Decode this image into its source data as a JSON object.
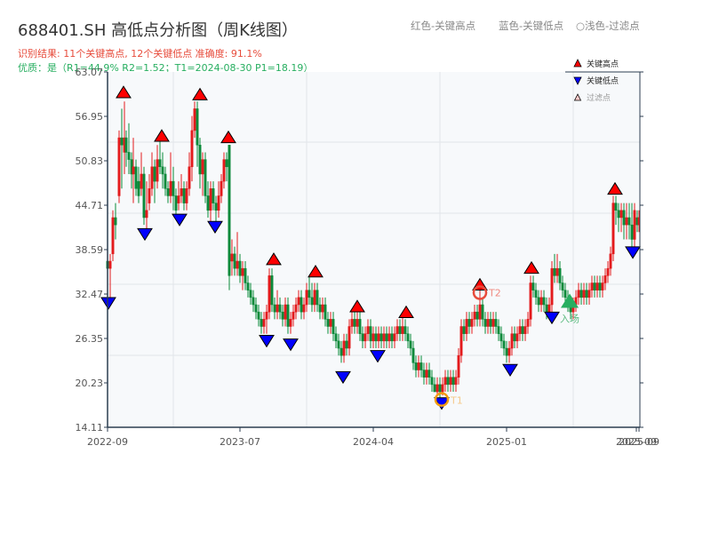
{
  "header": {
    "title": "688401.SH 高低点分析图（周K线图）",
    "result_line": "识别结果: 11个关键高点, 12个关键低点  准确度: 91.1%",
    "quality_line": "优质：是（R1=44.9%  R2=1.52；T1=2024-08-30 P1=18.19）"
  },
  "top_legend": {
    "red_label": "红色-关键高点",
    "blue_label": "蓝色-关键低点",
    "light_label": "○浅色-过滤点"
  },
  "colors": {
    "up": "#e31a1c",
    "down": "#0a8a3a",
    "high_marker": "#ff0000",
    "low_marker": "#0000ff",
    "t1": "#f39c12",
    "t2": "#e74c3c",
    "entry": "#27ae60",
    "plot_bg": "#f7f9fb",
    "grid": "#e2e5ea",
    "axis": "#2c3e50"
  },
  "chart_data": {
    "type": "candlestick",
    "title": "688401.SH 高低点分析图（周K线图）",
    "ylim": [
      14.11,
      63.07
    ],
    "yticks": [
      14.11,
      20.23,
      26.35,
      32.47,
      38.59,
      44.71,
      50.83,
      56.95,
      63.07
    ],
    "xticks": [
      {
        "label": "2022-09",
        "x": 121
      },
      {
        "label": "2023-07",
        "x": 270
      },
      {
        "label": "2024-04",
        "x": 420
      },
      {
        "label": "2025-01",
        "x": 570
      },
      {
        "label": "2025-09",
        "x": 716
      },
      {
        "label": "2025-09",
        "x": 719
      }
    ],
    "legend": [
      {
        "label": "关键高点",
        "marker": "triangle-up",
        "color": "#ff0000"
      },
      {
        "label": "关键低点",
        "marker": "triangle-down",
        "color": "#0000ff"
      },
      {
        "label": "过滤点",
        "marker": "triangle-up-light",
        "color": "#ffcccc"
      }
    ],
    "candles": [
      [
        121,
        37,
        36,
        37.5,
        35.5
      ],
      [
        124,
        36,
        37,
        38,
        32
      ],
      [
        127,
        38,
        43,
        44,
        37
      ],
      [
        130,
        43,
        42,
        45,
        40
      ],
      [
        134,
        46,
        54,
        55,
        45
      ],
      [
        137,
        54,
        53,
        58,
        47
      ],
      [
        140,
        52,
        54,
        59,
        49
      ],
      [
        142,
        54,
        52,
        55,
        50
      ],
      [
        145,
        52,
        51,
        56,
        49
      ],
      [
        148,
        51,
        49,
        52,
        47
      ],
      [
        150,
        49,
        50,
        54,
        45
      ],
      [
        153,
        50,
        47,
        51,
        46
      ],
      [
        156,
        48,
        46,
        50,
        45
      ],
      [
        159,
        47,
        49,
        52,
        46
      ],
      [
        162,
        49,
        43,
        50,
        42
      ],
      [
        165,
        43,
        44,
        48,
        41
      ],
      [
        168,
        45,
        47,
        49,
        44
      ],
      [
        171,
        47,
        50,
        52,
        46
      ],
      [
        174,
        50,
        48,
        51,
        45
      ],
      [
        177,
        48,
        51,
        53,
        47
      ],
      [
        180,
        51,
        50,
        54,
        49
      ],
      [
        183,
        50,
        49,
        52,
        47
      ],
      [
        186,
        49,
        47,
        50,
        46
      ],
      [
        189,
        47,
        46,
        48,
        45
      ],
      [
        192,
        46,
        48,
        52,
        45
      ],
      [
        195,
        48,
        46,
        50,
        44
      ],
      [
        198,
        46,
        44,
        47,
        43
      ],
      [
        201,
        45,
        46,
        48,
        44
      ],
      [
        204,
        46,
        47,
        49,
        45
      ],
      [
        207,
        47,
        45,
        48,
        44
      ],
      [
        210,
        45,
        47,
        48,
        44
      ],
      [
        213,
        47,
        50,
        52,
        46
      ],
      [
        216,
        50,
        55,
        57,
        48
      ],
      [
        219,
        55,
        58,
        59,
        54
      ],
      [
        222,
        58,
        53,
        59,
        50
      ],
      [
        225,
        53,
        49,
        54,
        47
      ],
      [
        228,
        49,
        51,
        52,
        46
      ],
      [
        231,
        51,
        46,
        52,
        45
      ],
      [
        234,
        46,
        44,
        48,
        43
      ],
      [
        237,
        44,
        47,
        48,
        42
      ],
      [
        240,
        47,
        45,
        48,
        44
      ],
      [
        243,
        45,
        44,
        46,
        42
      ],
      [
        246,
        44,
        46,
        48,
        43
      ],
      [
        249,
        46,
        48,
        49,
        45
      ],
      [
        252,
        48,
        51,
        52,
        47
      ],
      [
        255,
        51,
        50,
        52,
        48
      ],
      [
        258,
        53,
        35,
        53,
        33
      ],
      [
        261,
        37,
        38,
        40,
        35
      ],
      [
        264,
        38,
        36,
        39,
        35
      ],
      [
        267,
        36,
        37,
        41,
        35
      ],
      [
        270,
        37,
        35,
        38,
        34
      ],
      [
        273,
        35,
        36,
        37,
        33
      ],
      [
        276,
        36,
        34,
        37,
        33
      ],
      [
        279,
        34,
        33,
        35,
        32
      ],
      [
        282,
        33,
        32,
        34,
        31
      ],
      [
        285,
        32,
        31,
        33,
        30
      ],
      [
        288,
        31,
        30,
        32,
        29
      ],
      [
        291,
        30,
        29,
        31,
        28
      ],
      [
        294,
        29,
        28,
        30,
        27
      ],
      [
        297,
        28,
        29,
        30,
        27
      ],
      [
        300,
        29,
        30,
        31,
        27
      ],
      [
        303,
        30,
        35,
        36,
        29
      ],
      [
        306,
        35,
        31,
        36,
        30
      ],
      [
        309,
        31,
        30,
        32,
        29
      ],
      [
        312,
        30,
        31,
        33,
        29
      ],
      [
        315,
        31,
        30,
        32,
        29
      ],
      [
        318,
        30,
        29,
        31,
        28
      ],
      [
        321,
        29,
        31,
        32,
        28
      ],
      [
        324,
        31,
        28,
        32,
        27
      ],
      [
        327,
        28,
        29,
        30,
        27
      ],
      [
        330,
        29,
        30,
        31,
        28
      ],
      [
        333,
        30,
        31,
        32,
        29
      ],
      [
        336,
        31,
        32,
        33,
        30
      ],
      [
        339,
        32,
        30,
        33,
        29
      ],
      [
        342,
        30,
        31,
        32,
        29
      ],
      [
        345,
        31,
        33,
        34,
        30
      ],
      [
        348,
        33,
        32,
        35,
        31
      ],
      [
        351,
        32,
        31,
        34,
        30
      ],
      [
        354,
        31,
        33,
        34,
        30
      ],
      [
        357,
        33,
        31,
        34,
        30
      ],
      [
        360,
        31,
        30,
        32,
        29
      ],
      [
        363,
        30,
        31,
        32,
        29
      ],
      [
        366,
        31,
        29,
        32,
        28
      ],
      [
        369,
        29,
        28,
        30,
        27
      ],
      [
        372,
        28,
        29,
        30,
        27
      ],
      [
        375,
        29,
        27,
        30,
        26
      ],
      [
        378,
        27,
        26,
        28,
        25
      ],
      [
        381,
        26,
        25,
        27,
        24
      ],
      [
        384,
        25,
        24,
        26,
        23
      ],
      [
        387,
        24,
        26,
        27,
        23
      ],
      [
        390,
        26,
        25,
        27,
        24
      ],
      [
        393,
        25,
        28,
        29,
        24
      ],
      [
        396,
        28,
        29,
        30,
        27
      ],
      [
        399,
        29,
        28,
        30,
        27
      ],
      [
        402,
        28,
        29,
        30,
        27
      ],
      [
        405,
        29,
        27,
        30,
        26
      ],
      [
        408,
        27,
        26,
        28,
        25
      ],
      [
        411,
        26,
        27,
        28,
        25
      ],
      [
        414,
        27,
        28,
        29,
        26
      ],
      [
        417,
        28,
        26,
        29,
        25
      ],
      [
        420,
        26,
        27,
        28,
        25
      ],
      [
        423,
        27,
        26,
        28,
        25
      ],
      [
        426,
        26,
        27,
        28,
        25
      ],
      [
        429,
        27,
        26,
        28,
        25
      ],
      [
        432,
        26,
        27,
        28,
        25
      ],
      [
        435,
        27,
        26,
        28,
        25
      ],
      [
        438,
        26,
        27,
        28,
        25
      ],
      [
        441,
        27,
        26,
        28,
        25
      ],
      [
        444,
        26,
        27,
        28,
        25
      ],
      [
        447,
        27,
        28,
        29,
        26
      ],
      [
        450,
        28,
        27,
        29,
        26
      ],
      [
        453,
        27,
        28,
        30,
        26
      ],
      [
        456,
        28,
        27,
        29,
        26
      ],
      [
        459,
        27,
        26,
        28,
        25
      ],
      [
        462,
        26,
        25,
        27,
        24
      ],
      [
        465,
        25,
        23,
        26,
        22
      ],
      [
        468,
        23,
        22,
        24,
        21
      ],
      [
        471,
        22,
        23,
        24,
        21
      ],
      [
        474,
        23,
        22,
        24,
        21
      ],
      [
        477,
        22,
        21,
        23,
        20
      ],
      [
        480,
        21,
        22,
        23,
        20
      ],
      [
        483,
        22,
        21,
        23,
        20
      ],
      [
        486,
        21,
        20,
        22,
        19
      ],
      [
        489,
        20,
        19,
        21,
        19
      ],
      [
        492,
        19,
        20,
        21,
        18.5
      ],
      [
        495,
        20,
        19,
        21,
        18.2
      ],
      [
        498,
        19,
        20,
        21,
        18.5
      ],
      [
        501,
        20,
        21,
        22,
        19
      ],
      [
        504,
        21,
        20,
        22,
        19
      ],
      [
        507,
        20,
        21,
        22,
        19
      ],
      [
        510,
        21,
        20,
        22,
        19
      ],
      [
        513,
        20,
        21,
        22,
        19
      ],
      [
        516,
        21,
        24,
        25,
        20
      ],
      [
        519,
        24,
        28,
        29,
        23
      ],
      [
        522,
        28,
        27,
        29,
        26
      ],
      [
        525,
        27,
        29,
        30,
        26
      ],
      [
        528,
        29,
        28,
        30,
        27
      ],
      [
        531,
        28,
        29,
        30,
        27
      ],
      [
        534,
        29,
        30,
        31,
        28
      ],
      [
        537,
        30,
        29,
        31,
        28
      ],
      [
        540,
        29,
        31,
        33,
        28
      ],
      [
        543,
        31,
        29,
        32,
        28
      ],
      [
        546,
        29,
        28,
        30,
        27
      ],
      [
        549,
        28,
        29,
        30,
        27
      ],
      [
        552,
        29,
        28,
        30,
        27
      ],
      [
        555,
        28,
        29,
        30,
        27
      ],
      [
        558,
        29,
        28,
        30,
        27
      ],
      [
        561,
        28,
        27,
        29,
        26
      ],
      [
        564,
        27,
        26,
        28,
        25
      ],
      [
        567,
        26,
        25,
        27,
        24
      ],
      [
        570,
        25,
        24,
        26,
        23
      ],
      [
        573,
        24,
        25,
        26,
        23
      ],
      [
        576,
        25,
        27,
        28,
        24
      ],
      [
        579,
        27,
        26,
        28,
        25
      ],
      [
        582,
        26,
        27,
        28,
        25
      ],
      [
        585,
        27,
        28,
        29,
        26
      ],
      [
        588,
        28,
        27,
        29,
        26
      ],
      [
        591,
        27,
        28,
        29,
        26
      ],
      [
        594,
        28,
        29,
        30,
        27
      ],
      [
        597,
        29,
        34,
        35,
        28
      ],
      [
        600,
        34,
        33,
        35,
        32
      ],
      [
        603,
        33,
        32,
        34,
        31
      ],
      [
        606,
        32,
        31,
        33,
        30
      ],
      [
        609,
        31,
        32,
        33,
        30
      ],
      [
        612,
        32,
        31,
        33,
        30
      ],
      [
        615,
        31,
        30,
        32,
        29
      ],
      [
        618,
        30,
        31,
        32,
        29
      ],
      [
        621,
        31,
        36,
        37,
        30
      ],
      [
        624,
        36,
        35,
        38,
        34
      ],
      [
        627,
        35,
        36,
        38,
        34
      ],
      [
        630,
        36,
        34,
        37,
        33
      ],
      [
        633,
        34,
        33,
        35,
        32
      ],
      [
        636,
        33,
        32,
        34,
        31
      ],
      [
        639,
        32,
        31,
        33,
        30
      ],
      [
        642,
        31,
        30,
        32,
        29
      ],
      [
        645,
        30,
        31,
        32,
        29
      ],
      [
        648,
        31,
        32,
        33,
        30
      ],
      [
        651,
        32,
        33,
        34,
        31
      ],
      [
        654,
        33,
        32,
        34,
        31
      ],
      [
        657,
        32,
        33,
        34,
        31
      ],
      [
        660,
        33,
        32,
        34,
        31
      ],
      [
        663,
        32,
        33,
        34,
        31
      ],
      [
        666,
        33,
        34,
        35,
        32
      ],
      [
        669,
        34,
        33,
        35,
        32
      ],
      [
        672,
        33,
        34,
        35,
        32
      ],
      [
        675,
        34,
        33,
        35,
        32
      ],
      [
        678,
        33,
        34,
        35,
        32
      ],
      [
        681,
        34,
        35,
        36,
        33
      ],
      [
        684,
        35,
        36,
        37,
        34
      ],
      [
        687,
        36,
        38,
        39,
        35
      ],
      [
        690,
        38,
        45,
        46,
        37
      ],
      [
        693,
        45,
        44,
        46,
        42
      ],
      [
        696,
        44,
        43,
        45,
        41
      ],
      [
        699,
        43,
        44,
        45,
        41
      ],
      [
        702,
        44,
        42,
        45,
        40
      ],
      [
        705,
        42,
        43,
        45,
        40
      ],
      [
        708,
        43,
        42,
        45,
        40
      ],
      [
        711,
        42,
        40,
        45,
        39
      ],
      [
        714,
        40,
        44,
        45,
        39
      ],
      [
        717,
        43,
        42,
        44,
        41
      ],
      [
        719,
        42,
        43,
        44,
        41
      ]
    ],
    "key_highs": [
      {
        "x": 139,
        "price": 59.5
      },
      {
        "x": 182,
        "price": 53.5
      },
      {
        "x": 225,
        "price": 59.2
      },
      {
        "x": 257,
        "price": 53.3
      },
      {
        "x": 308,
        "price": 36.5
      },
      {
        "x": 355,
        "price": 34.8
      },
      {
        "x": 402,
        "price": 30.0
      },
      {
        "x": 457,
        "price": 29.2
      },
      {
        "x": 540,
        "price": 33.0
      },
      {
        "x": 598,
        "price": 35.3
      },
      {
        "x": 692,
        "price": 46.2
      }
    ],
    "key_lows": [
      {
        "x": 122,
        "price": 32.0
      },
      {
        "x": 163,
        "price": 41.5
      },
      {
        "x": 202,
        "price": 43.5
      },
      {
        "x": 242,
        "price": 42.5
      },
      {
        "x": 300,
        "price": 26.8
      },
      {
        "x": 327,
        "price": 26.3
      },
      {
        "x": 386,
        "price": 21.8
      },
      {
        "x": 425,
        "price": 24.7
      },
      {
        "x": 497,
        "price": 18.2
      },
      {
        "x": 574,
        "price": 22.8
      },
      {
        "x": 621,
        "price": 30.0
      },
      {
        "x": 712,
        "price": 39.0
      }
    ],
    "annotations": [
      {
        "label": "T1",
        "x": 497,
        "price": 18.19
      },
      {
        "label": "T2",
        "x": 540,
        "price": 32.9
      },
      {
        "label": "入场",
        "x": 641,
        "price": 31.3
      }
    ]
  }
}
